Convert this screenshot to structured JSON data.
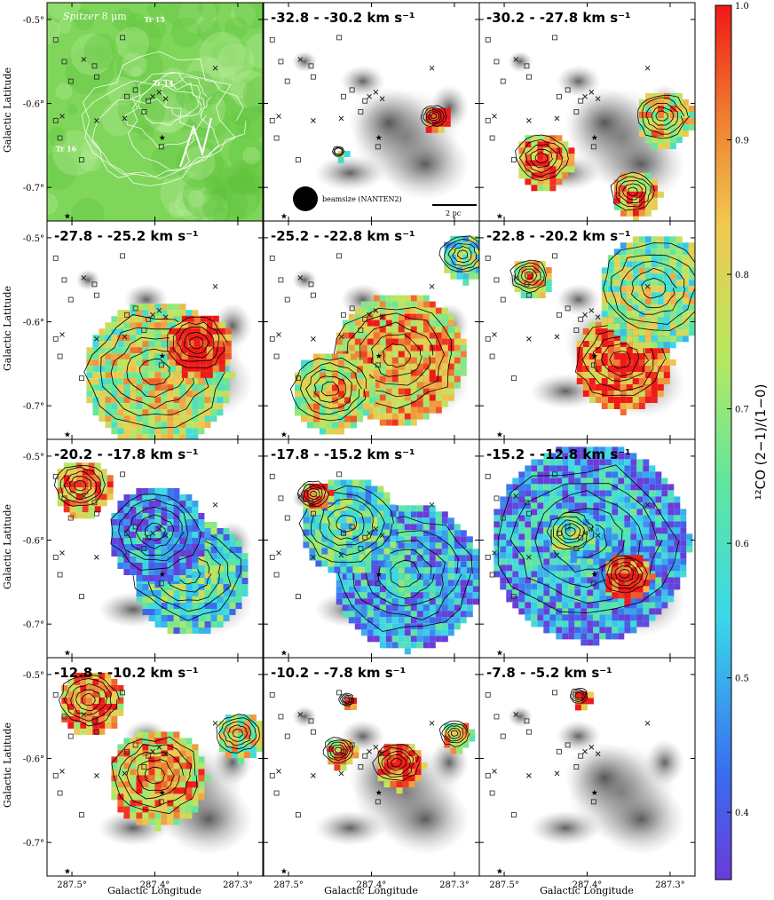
{
  "chart_data": {
    "type": "heatmap",
    "layout": "4x3 panel grid",
    "xlabel": "Galactic Longitude",
    "ylabel": "Galactic Latitude",
    "x_ticks": [
      "287.5°",
      "287.4°",
      "287.3°"
    ],
    "x_tick_values": [
      287.5,
      287.4,
      287.3
    ],
    "y_ticks": [
      "-0.5°",
      "-0.6°",
      "-0.7°"
    ],
    "y_tick_values": [
      -0.5,
      -0.6,
      -0.7
    ],
    "xlim": [
      287.53,
      287.27
    ],
    "ylim": [
      -0.74,
      -0.48
    ],
    "colorbar": {
      "label": "¹²CO (2−1)/(1−0)",
      "ticks": [
        "0.4",
        "0.5",
        "0.6",
        "0.7",
        "0.8",
        "0.9",
        "1.0"
      ],
      "tick_values": [
        0.4,
        0.5,
        0.6,
        0.7,
        0.8,
        0.9,
        1.0
      ],
      "range": [
        0.35,
        1.0
      ],
      "colormap": "rainbow (blue-cyan-green-yellow-red)"
    },
    "first_panel": {
      "title_italic": "Spitzer",
      "title_rest": " 8 μm",
      "cluster_labels": [
        "Tr 15",
        "Tr 14",
        "Tr 16"
      ],
      "beam_label": "beamsize (NANTEN2)",
      "scalebar_label": "2 pc"
    },
    "panels": [
      {
        "label": "-32.8 - -30.2 km s⁻¹",
        "range": [
          -32.8,
          -30.2
        ],
        "blobs": [
          {
            "l": 287.325,
            "b": -0.615,
            "r": 0.017,
            "v": 0.95
          },
          {
            "l": 287.44,
            "b": -0.657,
            "r": 0.008,
            "v": 0.55
          }
        ]
      },
      {
        "label": "-30.2 - -27.8 km s⁻¹",
        "range": [
          -30.2,
          -27.8
        ],
        "blobs": [
          {
            "l": 287.31,
            "b": -0.615,
            "r": 0.035,
            "v": 0.75
          },
          {
            "l": 287.455,
            "b": -0.665,
            "r": 0.035,
            "v": 0.85
          },
          {
            "l": 287.345,
            "b": -0.705,
            "r": 0.03,
            "v": 0.8
          }
        ]
      },
      {
        "label": "-27.8 - -25.2 km s⁻¹",
        "range": [
          -27.8,
          -25.2
        ],
        "blobs": [
          {
            "l": 287.4,
            "b": -0.66,
            "r": 0.09,
            "v": 0.7
          },
          {
            "l": 287.35,
            "b": -0.625,
            "r": 0.04,
            "v": 0.95
          }
        ]
      },
      {
        "label": "-25.2 - -22.8 km s⁻¹",
        "range": [
          -25.2,
          -22.8
        ],
        "blobs": [
          {
            "l": 287.37,
            "b": -0.64,
            "r": 0.08,
            "v": 0.8
          },
          {
            "l": 287.45,
            "b": -0.68,
            "r": 0.05,
            "v": 0.75
          },
          {
            "l": 287.29,
            "b": -0.52,
            "r": 0.03,
            "v": 0.6
          }
        ]
      },
      {
        "label": "-22.8 - -20.2 km s⁻¹",
        "range": [
          -22.8,
          -20.2
        ],
        "blobs": [
          {
            "l": 287.36,
            "b": -0.645,
            "r": 0.06,
            "v": 0.9
          },
          {
            "l": 287.32,
            "b": -0.56,
            "r": 0.07,
            "v": 0.65
          },
          {
            "l": 287.47,
            "b": -0.545,
            "r": 0.025,
            "v": 0.75
          }
        ]
      },
      {
        "label": "-20.2 - -17.8 km s⁻¹",
        "range": [
          -20.2,
          -17.8
        ],
        "blobs": [
          {
            "l": 287.36,
            "b": -0.64,
            "r": 0.07,
            "v": 0.55
          },
          {
            "l": 287.49,
            "b": -0.535,
            "r": 0.035,
            "v": 0.85
          },
          {
            "l": 287.4,
            "b": -0.59,
            "r": 0.06,
            "v": 0.4
          }
        ]
      },
      {
        "label": "-17.8 - -15.2 km s⁻¹",
        "range": [
          -17.8,
          -15.2
        ],
        "blobs": [
          {
            "l": 287.36,
            "b": -0.64,
            "r": 0.09,
            "v": 0.45
          },
          {
            "l": 287.43,
            "b": -0.58,
            "r": 0.06,
            "v": 0.55
          },
          {
            "l": 287.47,
            "b": -0.545,
            "r": 0.02,
            "v": 0.85
          }
        ]
      },
      {
        "label": "-15.2 - -12.8 km s⁻¹",
        "range": [
          -15.2,
          -12.8
        ],
        "blobs": [
          {
            "l": 287.4,
            "b": -0.6,
            "r": 0.12,
            "v": 0.45
          },
          {
            "l": 287.355,
            "b": -0.64,
            "r": 0.03,
            "v": 0.95
          },
          {
            "l": 287.42,
            "b": -0.59,
            "r": 0.03,
            "v": 0.6
          }
        ]
      },
      {
        "label": "-12.8 - -10.2 km s⁻¹",
        "range": [
          -12.8,
          -10.2
        ],
        "blobs": [
          {
            "l": 287.4,
            "b": -0.62,
            "r": 0.06,
            "v": 0.8
          },
          {
            "l": 287.48,
            "b": -0.53,
            "r": 0.04,
            "v": 0.85
          },
          {
            "l": 287.3,
            "b": -0.57,
            "r": 0.03,
            "v": 0.7
          }
        ]
      },
      {
        "label": "-10.2 - -7.8 km s⁻¹",
        "range": [
          -10.2,
          -7.8
        ],
        "blobs": [
          {
            "l": 287.37,
            "b": -0.605,
            "r": 0.03,
            "v": 0.9
          },
          {
            "l": 287.44,
            "b": -0.59,
            "r": 0.02,
            "v": 0.8
          },
          {
            "l": 287.43,
            "b": -0.53,
            "r": 0.01,
            "v": 0.95
          },
          {
            "l": 287.3,
            "b": -0.57,
            "r": 0.02,
            "v": 0.75
          }
        ]
      },
      {
        "label": "-7.8 - -5.2 km s⁻¹",
        "range": [
          -7.8,
          -5.2
        ],
        "blobs": [
          {
            "l": 287.41,
            "b": -0.525,
            "r": 0.012,
            "v": 0.95
          }
        ]
      }
    ]
  }
}
